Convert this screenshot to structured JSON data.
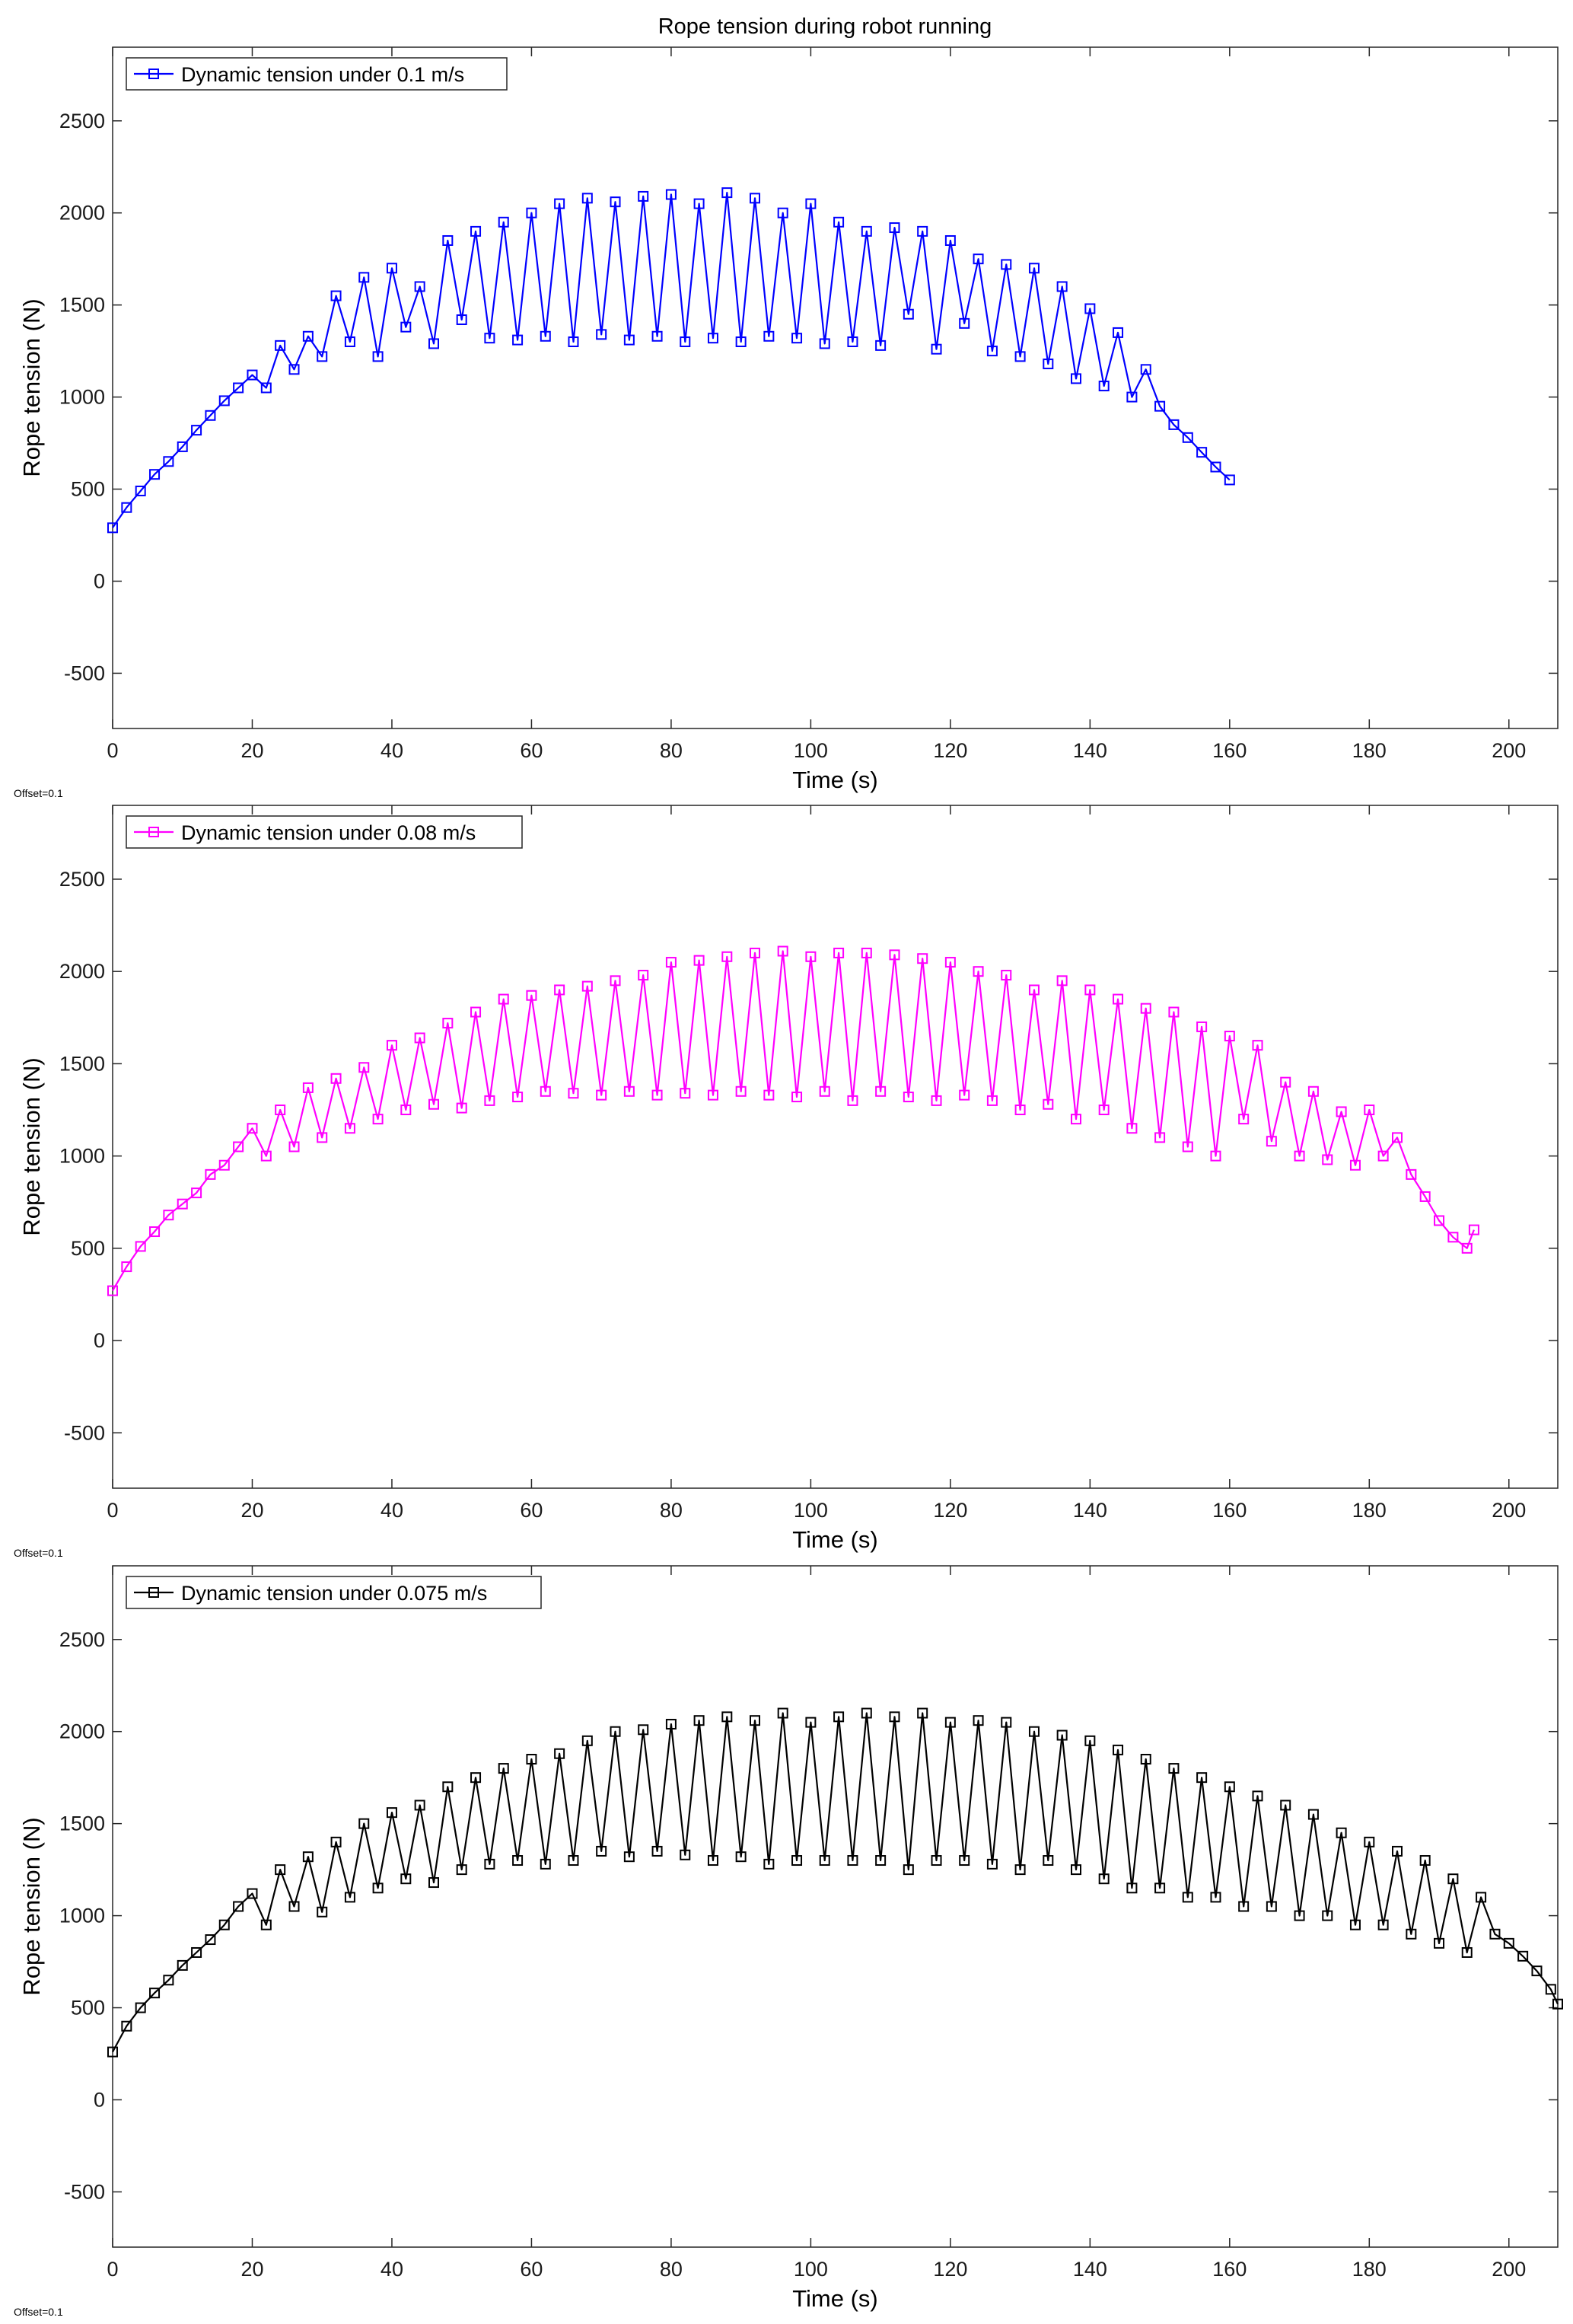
{
  "figure": {
    "title": "Rope tension during robot running"
  },
  "chart_data": [
    {
      "type": "line",
      "marker": "square",
      "xlabel": "Time (s)",
      "ylabel": "Rope tension (N)",
      "xlim": [
        0,
        207
      ],
      "ylim": [
        -800,
        2900
      ],
      "xticks": [
        0,
        20,
        40,
        60,
        80,
        100,
        120,
        140,
        160,
        180,
        200
      ],
      "yticks": [
        -500,
        0,
        500,
        1000,
        1500,
        2000,
        2500
      ],
      "xtick_labels": [
        "0",
        "20",
        "40",
        "60",
        "80",
        "100",
        "120",
        "140",
        "160",
        "180",
        "200"
      ],
      "ytick_labels": [
        "-500",
        "0",
        "500",
        "1000",
        "1500",
        "2000",
        "2500"
      ],
      "grid": false,
      "legend_position": "top-left",
      "offset_note": "Offset=0.1",
      "color": "#0000ff",
      "series": [
        {
          "name": "Dynamic tension under 0.1 m/s",
          "x": [
            0,
            2,
            4,
            6,
            8,
            10,
            12,
            14,
            16,
            18,
            20,
            22,
            24,
            26,
            28,
            30,
            32,
            34,
            36,
            38,
            40,
            42,
            44,
            46,
            48,
            50,
            52,
            54,
            56,
            58,
            60,
            62,
            64,
            66,
            68,
            70,
            72,
            74,
            76,
            78,
            80,
            82,
            84,
            86,
            88,
            90,
            92,
            94,
            96,
            98,
            100,
            102,
            104,
            106,
            108,
            110,
            112,
            114,
            116,
            118,
            120,
            122,
            124,
            126,
            128,
            130,
            132,
            134,
            136,
            138,
            140,
            142,
            144,
            146,
            148,
            150,
            152,
            154,
            156,
            158,
            160
          ],
          "values": [
            290,
            400,
            490,
            580,
            650,
            730,
            820,
            900,
            980,
            1050,
            1120,
            1050,
            1280,
            1150,
            1330,
            1220,
            1550,
            1300,
            1650,
            1220,
            1700,
            1380,
            1600,
            1290,
            1850,
            1420,
            1900,
            1320,
            1950,
            1310,
            2000,
            1330,
            2050,
            1300,
            2080,
            1340,
            2060,
            1310,
            2090,
            1330,
            2100,
            1300,
            2050,
            1320,
            2110,
            1300,
            2080,
            1330,
            2000,
            1320,
            2050,
            1290,
            1950,
            1300,
            1900,
            1280,
            1920,
            1450,
            1900,
            1260,
            1850,
            1400,
            1750,
            1250,
            1720,
            1220,
            1700,
            1180,
            1600,
            1100,
            1480,
            1060,
            1350,
            1000,
            1150,
            950,
            850,
            780,
            700,
            620,
            550
          ]
        }
      ]
    },
    {
      "type": "line",
      "marker": "square",
      "xlabel": "Time (s)",
      "ylabel": "Rope tension (N)",
      "xlim": [
        0,
        207
      ],
      "ylim": [
        -800,
        2900
      ],
      "xticks": [
        0,
        20,
        40,
        60,
        80,
        100,
        120,
        140,
        160,
        180,
        200
      ],
      "yticks": [
        -500,
        0,
        500,
        1000,
        1500,
        2000,
        2500
      ],
      "xtick_labels": [
        "0",
        "20",
        "40",
        "60",
        "80",
        "100",
        "120",
        "140",
        "160",
        "180",
        "200"
      ],
      "ytick_labels": [
        "-500",
        "0",
        "500",
        "1000",
        "1500",
        "2000",
        "2500"
      ],
      "grid": false,
      "legend_position": "top-left",
      "offset_note": "Offset=0.1",
      "color": "#ff00ff",
      "series": [
        {
          "name": "Dynamic tension under 0.08 m/s",
          "x": [
            0,
            2,
            4,
            6,
            8,
            10,
            12,
            14,
            16,
            18,
            20,
            22,
            24,
            26,
            28,
            30,
            32,
            34,
            36,
            38,
            40,
            42,
            44,
            46,
            48,
            50,
            52,
            54,
            56,
            58,
            60,
            62,
            64,
            66,
            68,
            70,
            72,
            74,
            76,
            78,
            80,
            82,
            84,
            86,
            88,
            90,
            92,
            94,
            96,
            98,
            100,
            102,
            104,
            106,
            108,
            110,
            112,
            114,
            116,
            118,
            120,
            122,
            124,
            126,
            128,
            130,
            132,
            134,
            136,
            138,
            140,
            142,
            144,
            146,
            148,
            150,
            152,
            154,
            156,
            158,
            160,
            162,
            164,
            166,
            168,
            170,
            172,
            174,
            176,
            178,
            180,
            182,
            184,
            186,
            188,
            190,
            192,
            194,
            195
          ],
          "values": [
            270,
            400,
            510,
            590,
            680,
            740,
            800,
            900,
            950,
            1050,
            1150,
            1000,
            1250,
            1050,
            1370,
            1100,
            1420,
            1150,
            1480,
            1200,
            1600,
            1250,
            1640,
            1280,
            1720,
            1260,
            1780,
            1300,
            1850,
            1320,
            1870,
            1350,
            1900,
            1340,
            1920,
            1330,
            1950,
            1350,
            1980,
            1330,
            2050,
            1340,
            2060,
            1330,
            2080,
            1350,
            2100,
            1330,
            2110,
            1320,
            2080,
            1350,
            2100,
            1300,
            2100,
            1350,
            2090,
            1320,
            2070,
            1300,
            2050,
            1330,
            2000,
            1300,
            1980,
            1250,
            1900,
            1280,
            1950,
            1200,
            1900,
            1250,
            1850,
            1150,
            1800,
            1100,
            1780,
            1050,
            1700,
            1000,
            1650,
            1200,
            1600,
            1080,
            1400,
            1000,
            1350,
            980,
            1240,
            950,
            1250,
            1000,
            1100,
            900,
            780,
            650,
            560,
            500,
            600
          ]
        }
      ]
    },
    {
      "type": "line",
      "marker": "square",
      "xlabel": "Time (s)",
      "ylabel": "Rope tension (N)",
      "xlim": [
        0,
        207
      ],
      "ylim": [
        -800,
        2900
      ],
      "xticks": [
        0,
        20,
        40,
        60,
        80,
        100,
        120,
        140,
        160,
        180,
        200
      ],
      "yticks": [
        -500,
        0,
        500,
        1000,
        1500,
        2000,
        2500
      ],
      "xtick_labels": [
        "0",
        "20",
        "40",
        "60",
        "80",
        "100",
        "120",
        "140",
        "160",
        "180",
        "200"
      ],
      "ytick_labels": [
        "-500",
        "0",
        "500",
        "1000",
        "1500",
        "2000",
        "2500"
      ],
      "grid": false,
      "legend_position": "top-left",
      "offset_note": "Offset=0.1",
      "color": "#000000",
      "series": [
        {
          "name": "Dynamic tension under 0.075 m/s",
          "x": [
            0,
            2,
            4,
            6,
            8,
            10,
            12,
            14,
            16,
            18,
            20,
            22,
            24,
            26,
            28,
            30,
            32,
            34,
            36,
            38,
            40,
            42,
            44,
            46,
            48,
            50,
            52,
            54,
            56,
            58,
            60,
            62,
            64,
            66,
            68,
            70,
            72,
            74,
            76,
            78,
            80,
            82,
            84,
            86,
            88,
            90,
            92,
            94,
            96,
            98,
            100,
            102,
            104,
            106,
            108,
            110,
            112,
            114,
            116,
            118,
            120,
            122,
            124,
            126,
            128,
            130,
            132,
            134,
            136,
            138,
            140,
            142,
            144,
            146,
            148,
            150,
            152,
            154,
            156,
            158,
            160,
            162,
            164,
            166,
            168,
            170,
            172,
            174,
            176,
            178,
            180,
            182,
            184,
            186,
            188,
            190,
            192,
            194,
            196,
            198,
            200,
            202,
            204,
            206,
            207
          ],
          "values": [
            260,
            400,
            500,
            580,
            650,
            730,
            800,
            870,
            950,
            1050,
            1120,
            950,
            1250,
            1050,
            1320,
            1020,
            1400,
            1100,
            1500,
            1150,
            1560,
            1200,
            1600,
            1180,
            1700,
            1250,
            1750,
            1280,
            1800,
            1300,
            1850,
            1280,
            1880,
            1300,
            1950,
            1350,
            2000,
            1320,
            2010,
            1350,
            2040,
            1330,
            2060,
            1300,
            2080,
            1320,
            2060,
            1280,
            2100,
            1300,
            2050,
            1300,
            2080,
            1300,
            2100,
            1300,
            2080,
            1250,
            2100,
            1300,
            2050,
            1300,
            2060,
            1280,
            2050,
            1250,
            2000,
            1300,
            1980,
            1250,
            1950,
            1200,
            1900,
            1150,
            1850,
            1150,
            1800,
            1100,
            1750,
            1100,
            1700,
            1050,
            1650,
            1050,
            1600,
            1000,
            1550,
            1000,
            1450,
            950,
            1400,
            950,
            1350,
            900,
            1300,
            850,
            1200,
            800,
            1100,
            900,
            850,
            780,
            700,
            600,
            520
          ]
        }
      ]
    }
  ]
}
